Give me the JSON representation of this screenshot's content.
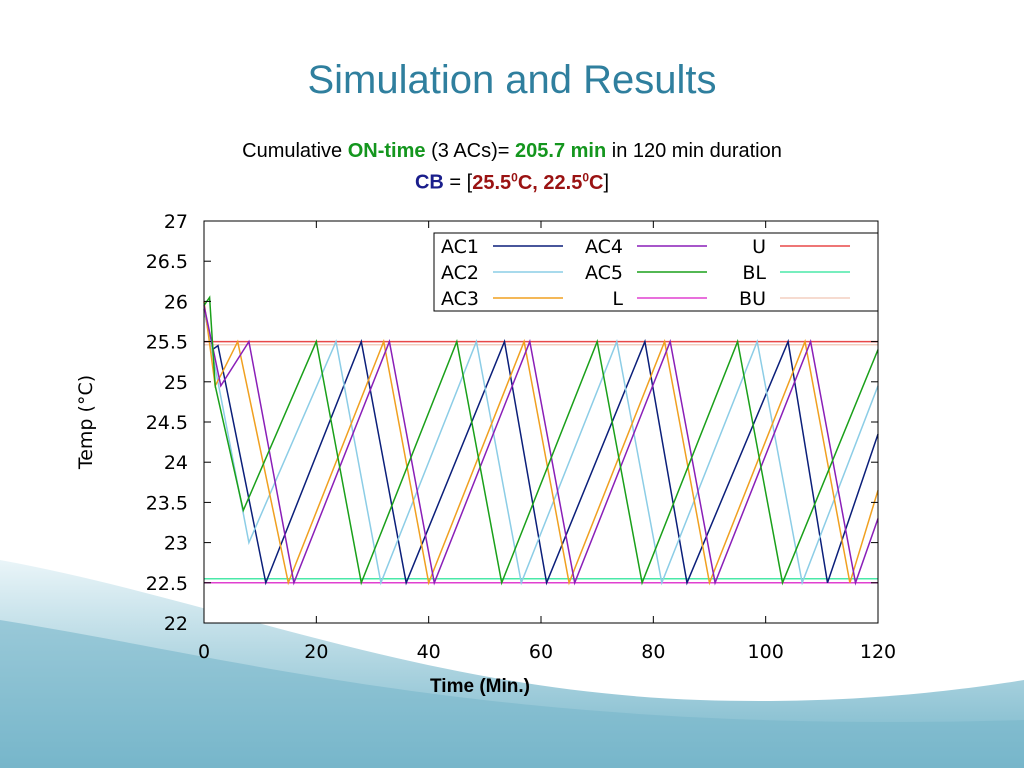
{
  "slide": {
    "title": "Simulation and Results",
    "summary": {
      "prefix": "Cumulative ",
      "on_time_label": "ON-time",
      "middle": " (3 ACs)= ",
      "on_time_value": "205.7 min",
      "suffix": " in 120 min duration"
    },
    "comfort_band": {
      "label": "CB",
      "equals": " = [",
      "upper_base": "25.5",
      "upper_sup": "0",
      "unit1": "C, ",
      "lower_base": "22.5",
      "lower_sup": "0",
      "unit2": "C",
      "close": "]"
    }
  },
  "colors": {
    "title": "#2f7f9e",
    "highlight_green": "#14961e",
    "highlight_navy": "#1a1e8c",
    "highlight_red": "#9a1212"
  },
  "chart_data": {
    "type": "line",
    "xlabel": "Time (Min.)",
    "ylabel": "Temp (°C)",
    "xlim": [
      0,
      120
    ],
    "ylim": [
      22,
      27
    ],
    "xticks": [
      "0",
      "20",
      "40",
      "60",
      "80",
      "100",
      "120"
    ],
    "yticks": [
      "22",
      "22.5",
      "23",
      "23.5",
      "24",
      "24.5",
      "25",
      "25.5",
      "26",
      "26.5",
      "27"
    ],
    "grid": false,
    "legend_position": "top-right",
    "series": [
      {
        "name": "AC1",
        "color": "#0b1f7a",
        "points": [
          [
            0,
            25.9
          ],
          [
            1.5,
            25.4
          ],
          [
            2.5,
            25.45
          ],
          [
            11,
            22.5
          ],
          [
            28,
            25.5
          ],
          [
            36,
            22.5
          ],
          [
            53.5,
            25.5
          ],
          [
            61,
            22.5
          ],
          [
            78.5,
            25.5
          ],
          [
            86,
            22.5
          ],
          [
            104,
            25.5
          ],
          [
            111,
            22.5
          ],
          [
            120,
            24.35
          ]
        ]
      },
      {
        "name": "AC2",
        "color": "#8ccde6",
        "points": [
          [
            0,
            25.9
          ],
          [
            8,
            23.0
          ],
          [
            23.5,
            25.5
          ],
          [
            31.5,
            22.5
          ],
          [
            48.5,
            25.5
          ],
          [
            56.5,
            22.5
          ],
          [
            73.5,
            25.5
          ],
          [
            81.5,
            22.5
          ],
          [
            98.5,
            25.5
          ],
          [
            106.5,
            22.5
          ],
          [
            120,
            24.95
          ]
        ]
      },
      {
        "name": "AC3",
        "color": "#f0a020",
        "points": [
          [
            0,
            26.0
          ],
          [
            2,
            24.95
          ],
          [
            3.5,
            25.15
          ],
          [
            6,
            25.5
          ],
          [
            15,
            22.5
          ],
          [
            32,
            25.5
          ],
          [
            40,
            22.5
          ],
          [
            57,
            25.5
          ],
          [
            65,
            22.5
          ],
          [
            82,
            25.5
          ],
          [
            90,
            22.5
          ],
          [
            107,
            25.5
          ],
          [
            115,
            22.5
          ],
          [
            120,
            23.65
          ]
        ]
      },
      {
        "name": "AC4",
        "color": "#8a1fb8",
        "points": [
          [
            0,
            25.95
          ],
          [
            3,
            24.95
          ],
          [
            8,
            25.5
          ],
          [
            16,
            22.5
          ],
          [
            33,
            25.5
          ],
          [
            41,
            22.5
          ],
          [
            58,
            25.5
          ],
          [
            66,
            22.5
          ],
          [
            83,
            25.5
          ],
          [
            91,
            22.5
          ],
          [
            108,
            25.5
          ],
          [
            116,
            22.5
          ],
          [
            120,
            23.3
          ]
        ]
      },
      {
        "name": "AC5",
        "color": "#1aa01a",
        "points": [
          [
            0,
            25.95
          ],
          [
            1,
            26.05
          ],
          [
            2,
            24.95
          ],
          [
            7,
            23.4
          ],
          [
            20,
            25.5
          ],
          [
            28,
            22.5
          ],
          [
            45,
            25.5
          ],
          [
            53,
            22.5
          ],
          [
            70,
            25.5
          ],
          [
            78,
            22.5
          ],
          [
            95,
            25.5
          ],
          [
            103,
            22.5
          ],
          [
            120,
            25.4
          ]
        ]
      },
      {
        "name": "L",
        "color": "#e040d0",
        "points": [
          [
            0,
            22.5
          ],
          [
            120,
            22.5
          ]
        ]
      },
      {
        "name": "U",
        "color": "#e84848",
        "points": [
          [
            0,
            25.5
          ],
          [
            120,
            25.5
          ]
        ]
      },
      {
        "name": "BL",
        "color": "#4ae8a8",
        "points": [
          [
            0,
            22.55
          ],
          [
            120,
            22.55
          ]
        ]
      },
      {
        "name": "BU",
        "color": "#f3cfc0",
        "points": [
          [
            0,
            25.46
          ],
          [
            120,
            25.46
          ]
        ]
      }
    ]
  }
}
